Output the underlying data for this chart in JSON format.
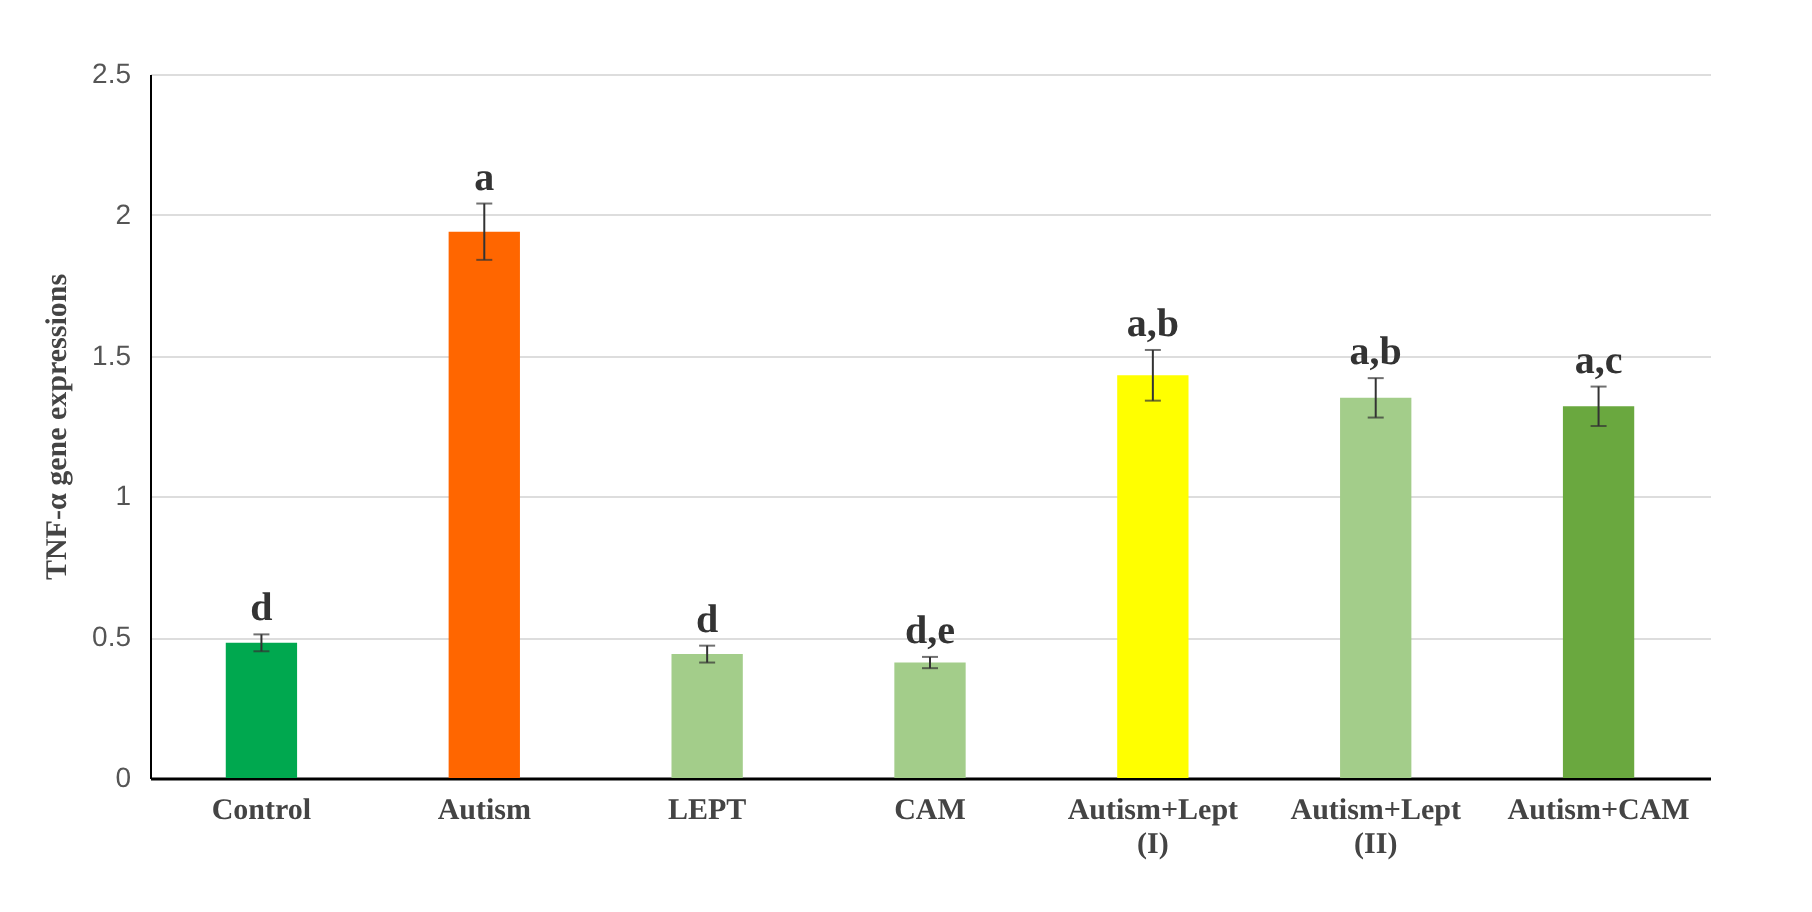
{
  "chart_data": {
    "type": "bar",
    "ylabel": "TNF-α gene expressions",
    "categories": [
      "Control",
      "Autism",
      "LEPT",
      "CAM",
      "Autism+Lept (I)",
      "Autism+Lept (II)",
      "Autism+CAM"
    ],
    "values": [
      0.48,
      1.94,
      0.44,
      0.41,
      1.43,
      1.35,
      1.32
    ],
    "errors": [
      0.03,
      0.1,
      0.03,
      0.02,
      0.09,
      0.07,
      0.07
    ],
    "colors": [
      "#00a84f",
      "#ff6600",
      "#a3cd8a",
      "#a3cd8a",
      "#ffff00",
      "#a3cd8a",
      "#6aa83f"
    ],
    "ylim": [
      0,
      2.5
    ],
    "yticks": [
      0,
      0.5,
      1,
      1.5,
      2,
      2.5
    ],
    "grid": "y",
    "annotations": [
      {
        "text": "d",
        "x": "Control",
        "y": 0.51
      },
      {
        "text": "a",
        "x": "Autism",
        "y": 2.04
      },
      {
        "text": "d",
        "x": "LEPT",
        "y": 0.47
      },
      {
        "text": "d,e",
        "x": "CAM",
        "y": 0.43
      },
      {
        "text": "a,b",
        "x": "Autism+Lept (I)",
        "y": 1.52
      },
      {
        "text": "a,b",
        "x": "Autism+Lept (II)",
        "y": 1.42
      },
      {
        "text": "a,c",
        "x": "Autism+CAM",
        "y": 1.39
      }
    ]
  }
}
